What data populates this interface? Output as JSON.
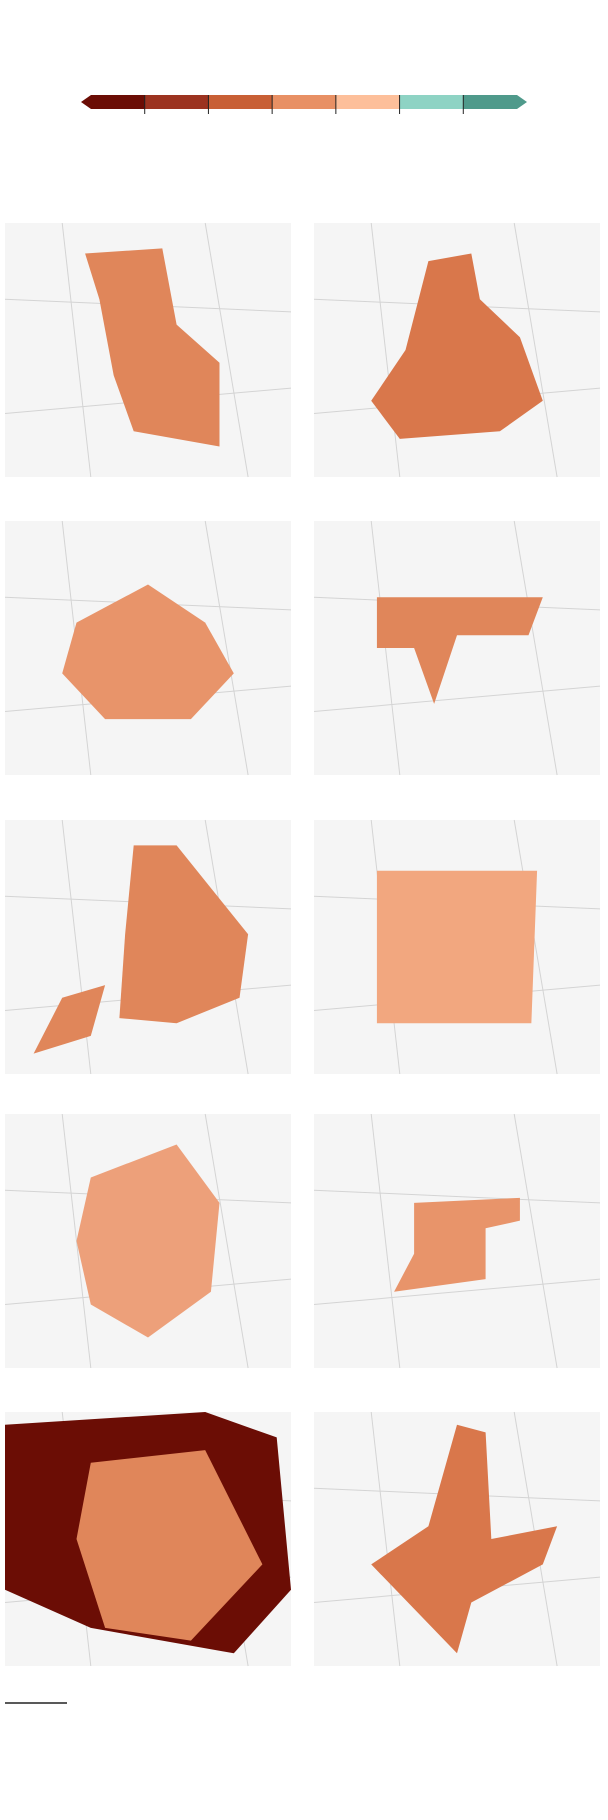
{
  "legend": {
    "colors": [
      "#6b0d05",
      "#9c3320",
      "#c85f35",
      "#e89064",
      "#fdbf9a",
      "#8ed3c4",
      "#4f9a8b"
    ]
  }
}
